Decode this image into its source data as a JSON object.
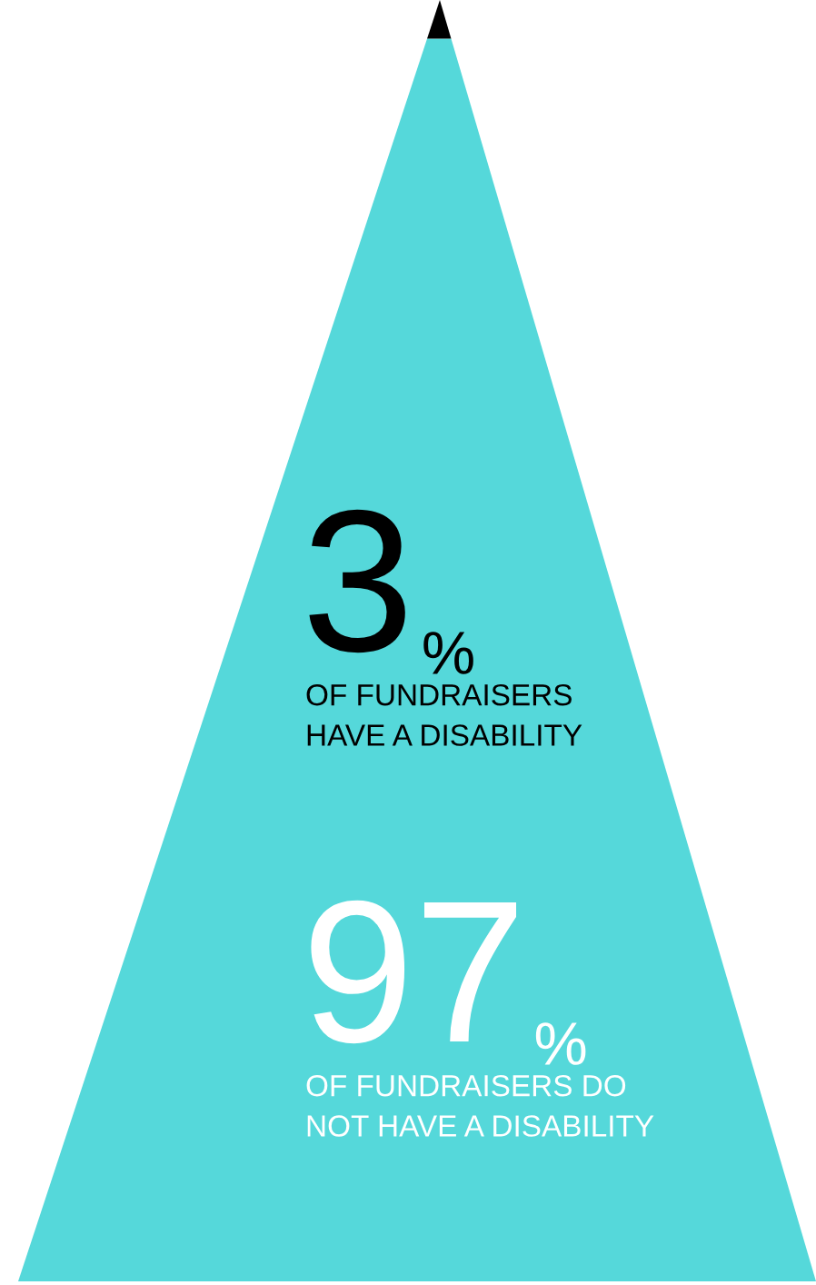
{
  "chart_data": {
    "type": "other",
    "categories": [
      "OF FUNDRAISERS\nHAVE A DISABILITY",
      "OF FUNDRAISERS DO\nNOT HAVE A DISABILITY"
    ],
    "values": [
      3,
      97
    ],
    "value_labels": [
      "3%",
      "97%"
    ],
    "colors": [
      "#000000",
      "#55d8da"
    ]
  }
}
